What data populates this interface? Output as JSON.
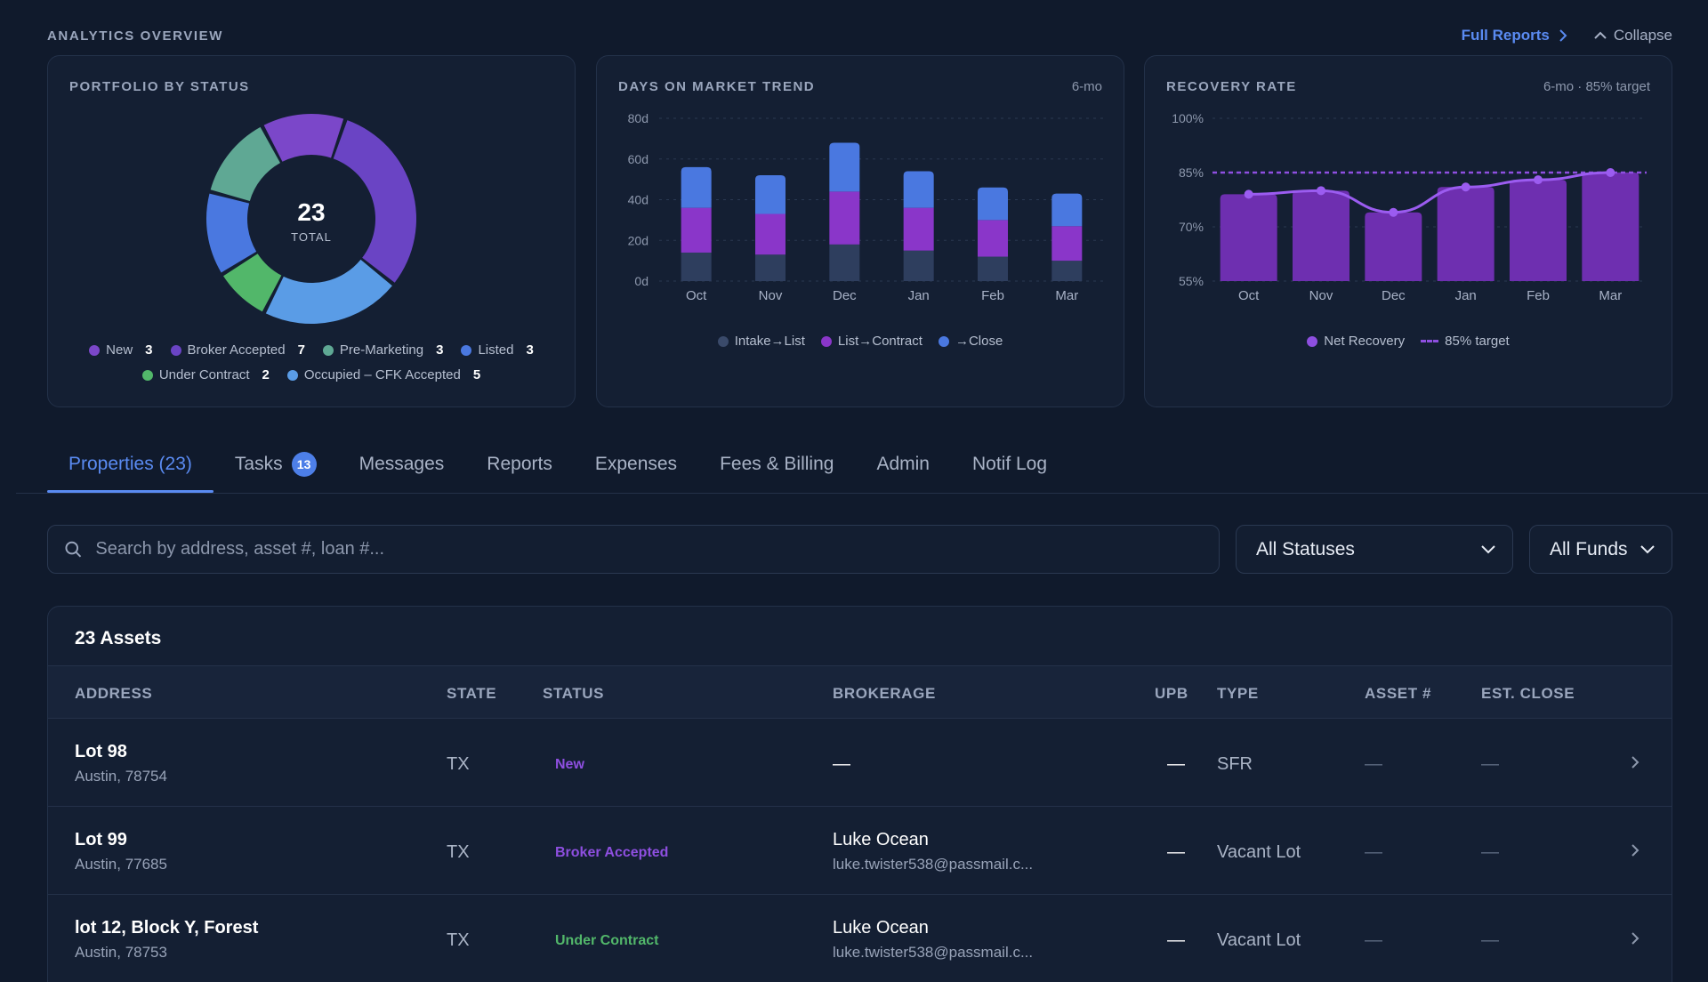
{
  "overview": {
    "title": "ANALYTICS OVERVIEW",
    "full_reports": "Full Reports",
    "collapse": "Collapse"
  },
  "colors": {
    "new": "#7b47c9",
    "broker_accepted": "#6a44c4",
    "pre_marketing": "#5fa894",
    "listed": "#4a78e0",
    "under_contract": "#52b76a",
    "occupied": "#5a9ce6",
    "intake": "#2e3e5e",
    "list_contract": "#8a36c9",
    "close": "#4a78e0",
    "net_recovery": "#6e2fb0",
    "target_line": "#8e4fe0"
  },
  "portfolio": {
    "title": "PORTFOLIO BY STATUS",
    "total": "23",
    "total_label": "TOTAL",
    "legend": [
      {
        "label": "New",
        "count": "3"
      },
      {
        "label": "Broker Accepted",
        "count": "7"
      },
      {
        "label": "Pre-Marketing",
        "count": "3"
      },
      {
        "label": "Listed",
        "count": "3"
      },
      {
        "label": "Under Contract",
        "count": "2"
      },
      {
        "label": "Occupied – CFK Accepted",
        "count": "5"
      }
    ]
  },
  "dom": {
    "title": "DAYS ON MARKET TREND",
    "sub": "6-mo",
    "legend": [
      "Intake→List",
      "List→Contract",
      "→Close"
    ]
  },
  "recovery": {
    "title": "RECOVERY RATE",
    "sub": "6-mo · 85% target",
    "legend": [
      "Net Recovery",
      "85% target"
    ]
  },
  "chart_data": [
    {
      "type": "pie",
      "title": "PORTFOLIO BY STATUS",
      "categories": [
        "New",
        "Broker Accepted",
        "Pre-Marketing",
        "Listed",
        "Under Contract",
        "Occupied – CFK Accepted"
      ],
      "values": [
        3,
        7,
        3,
        3,
        2,
        5
      ],
      "legend": "bottom"
    },
    {
      "type": "bar",
      "stacked": true,
      "title": "DAYS ON MARKET TREND",
      "categories": [
        "Oct",
        "Nov",
        "Dec",
        "Jan",
        "Feb",
        "Mar"
      ],
      "ylim": [
        0,
        80
      ],
      "yticks": [
        "0d",
        "20d",
        "40d",
        "60d",
        "80d"
      ],
      "series": [
        {
          "name": "Intake→List",
          "values": [
            14,
            13,
            18,
            15,
            12,
            10
          ]
        },
        {
          "name": "List→Contract",
          "values": [
            22,
            20,
            26,
            21,
            18,
            17
          ]
        },
        {
          "name": "→Close",
          "values": [
            20,
            19,
            24,
            18,
            16,
            16
          ]
        }
      ],
      "grid": true,
      "legend": "bottom"
    },
    {
      "type": "bar",
      "title": "RECOVERY RATE",
      "categories": [
        "Oct",
        "Nov",
        "Dec",
        "Jan",
        "Feb",
        "Mar"
      ],
      "ylim": [
        55,
        100
      ],
      "yticks": [
        "55%",
        "70%",
        "85%",
        "100%"
      ],
      "series": [
        {
          "name": "Net Recovery",
          "values": [
            79,
            80,
            74,
            81,
            83,
            85
          ]
        },
        {
          "name": "85% target",
          "values": [
            85,
            85,
            85,
            85,
            85,
            85
          ]
        }
      ],
      "grid": true,
      "legend": "bottom"
    }
  ],
  "tabs": [
    {
      "label": "Properties (23)"
    },
    {
      "label": "Tasks",
      "badge": "13"
    },
    {
      "label": "Messages"
    },
    {
      "label": "Reports"
    },
    {
      "label": "Expenses"
    },
    {
      "label": "Fees & Billing"
    },
    {
      "label": "Admin"
    },
    {
      "label": "Notif Log"
    }
  ],
  "filters": {
    "search_placeholder": "Search by address, asset #, loan #...",
    "status": "All Statuses",
    "funds": "All Funds"
  },
  "table": {
    "title": "23 Assets",
    "columns": [
      "ADDRESS",
      "STATE",
      "STATUS",
      "BROKERAGE",
      "UPB",
      "TYPE",
      "ASSET #",
      "EST. CLOSE"
    ],
    "rows": [
      {
        "address": "Lot 98",
        "city": "Austin, 78754",
        "state": "TX",
        "status": "New",
        "broker": "—",
        "email": "",
        "upb": "—",
        "type": "SFR",
        "asset": "—",
        "close": "—"
      },
      {
        "address": "Lot 99",
        "city": "Austin, 77685",
        "state": "TX",
        "status": "Broker Accepted",
        "broker": "Luke Ocean",
        "email": "luke.twister538@passmail.c...",
        "upb": "—",
        "type": "Vacant Lot",
        "asset": "—",
        "close": "—"
      },
      {
        "address": "lot 12, Block Y, Forest",
        "city": "Austin, 78753",
        "state": "TX",
        "status": "Under Contract",
        "broker": "Luke Ocean",
        "email": "luke.twister538@passmail.c...",
        "upb": "—",
        "type": "Vacant Lot",
        "asset": "—",
        "close": "—"
      }
    ]
  }
}
